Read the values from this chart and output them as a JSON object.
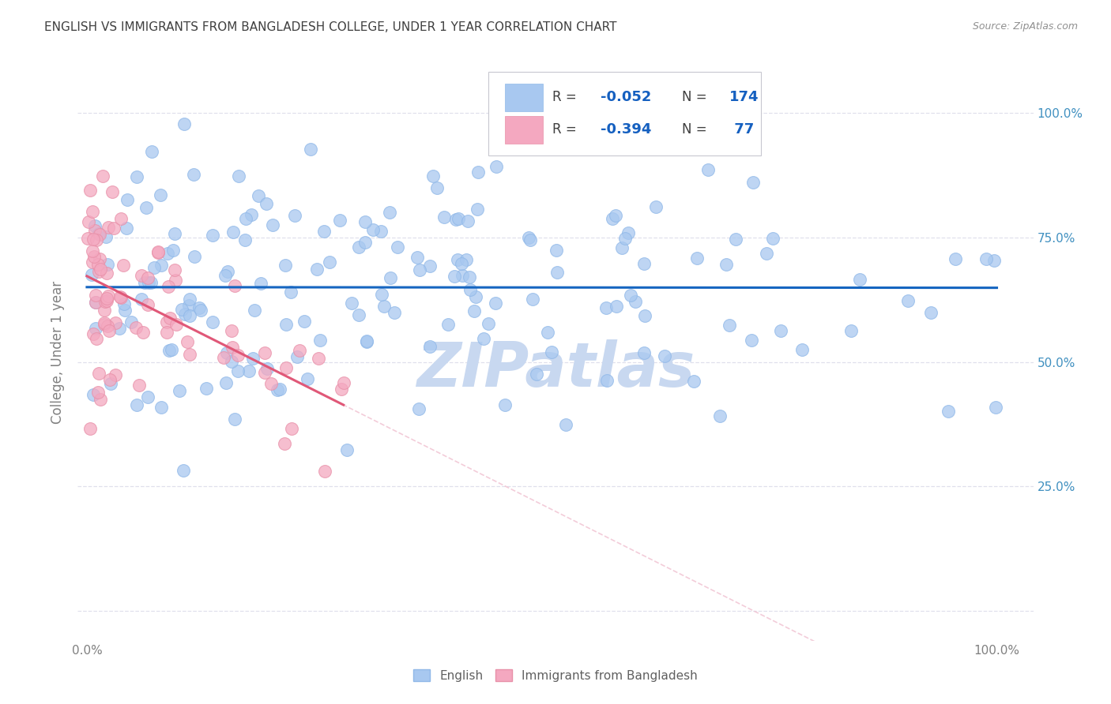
{
  "title": "ENGLISH VS IMMIGRANTS FROM BANGLADESH COLLEGE, UNDER 1 YEAR CORRELATION CHART",
  "source": "Source: ZipAtlas.com",
  "ylabel": "College, Under 1 year",
  "legend_R_blue": "-0.052",
  "legend_N_blue": "174",
  "legend_R_pink": "-0.394",
  "legend_N_pink": " 77",
  "blue_color": "#A8C8F0",
  "blue_line_color": "#1565C0",
  "pink_color": "#F4A8C0",
  "pink_line_color": "#E05878",
  "pink_dash_color": "#F0C0D0",
  "background_color": "#FFFFFF",
  "grid_color": "#E0E0EC",
  "title_color": "#404040",
  "source_color": "#909090",
  "right_tick_color": "#4090C0",
  "watermark_color": "#C8D8F0",
  "seed_blue": 77,
  "seed_pink": 99
}
